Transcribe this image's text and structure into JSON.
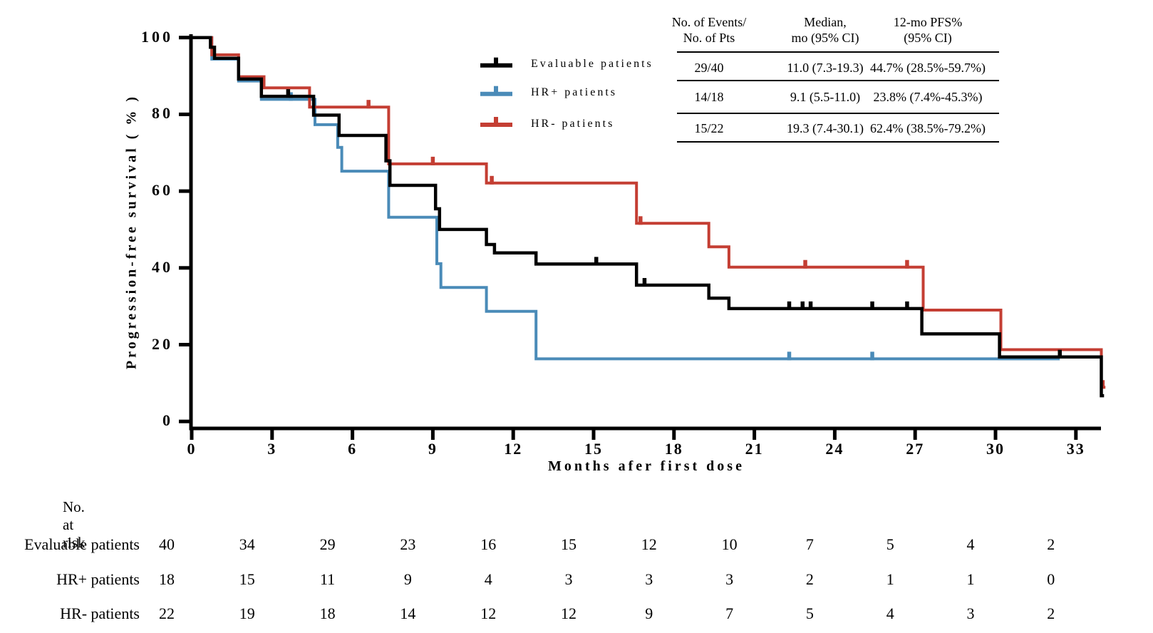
{
  "y_axis": {
    "label": "Progression-free survival ( % )",
    "ticks": [
      0,
      20,
      40,
      60,
      80,
      100
    ]
  },
  "x_axis": {
    "label": "Months afer first dose",
    "ticks": [
      0,
      3,
      6,
      9,
      12,
      15,
      18,
      21,
      24,
      27,
      30,
      33
    ]
  },
  "legend": {
    "items": [
      {
        "label": "Evaluable patients",
        "color": "#000000"
      },
      {
        "label": "HR+ patients",
        "color": "#4A8BB8"
      },
      {
        "label": "HR- patients",
        "color": "#C43E33"
      }
    ]
  },
  "stats_table": {
    "headers": [
      {
        "line1": "No. of Events/",
        "line2": "No. of Pts"
      },
      {
        "line1": "Median,",
        "line2": "mo (95% CI)"
      },
      {
        "line1": "12-mo PFS%",
        "line2": "(95% CI)"
      }
    ],
    "rows": [
      {
        "events": "29/40",
        "median": "11.0 (7.3-19.3)",
        "pfs": "44.7% (28.5%-59.7%)"
      },
      {
        "events": "14/18",
        "median": "9.1 (5.5-11.0)",
        "pfs": "23.8% (7.4%-45.3%)"
      },
      {
        "events": "15/22",
        "median": "19.3 (7.4-30.1)",
        "pfs": "62.4% (38.5%-79.2%)"
      }
    ]
  },
  "risk_table": {
    "title": "No. at risk",
    "rows": [
      {
        "label": "Evaluable patients",
        "counts": [
          40,
          34,
          29,
          23,
          16,
          15,
          12,
          10,
          7,
          5,
          4,
          2
        ]
      },
      {
        "label": "HR+ patients",
        "counts": [
          18,
          15,
          11,
          9,
          4,
          3,
          3,
          3,
          2,
          1,
          1,
          0
        ]
      },
      {
        "label": "HR- patients",
        "counts": [
          22,
          19,
          18,
          14,
          12,
          12,
          9,
          7,
          5,
          4,
          3,
          2
        ]
      }
    ]
  },
  "chart_data": {
    "type": "line",
    "subtype": "kaplan-meier-step",
    "title": "",
    "xlabel": "Months afer first dose",
    "ylabel": "Progression-free survival ( % )",
    "xlim": [
      0,
      34.5
    ],
    "ylim": [
      0,
      100
    ],
    "grid": false,
    "legend_position": "upper-center-left",
    "series": [
      {
        "name": "HR+ patients",
        "color": "#4A8BB8",
        "line_width": 4,
        "points": [
          [
            0,
            100
          ],
          [
            0.75,
            94.4
          ],
          [
            1.75,
            88.7
          ],
          [
            2.6,
            83.9
          ],
          [
            4.6,
            77.3
          ],
          [
            5.45,
            71.4
          ],
          [
            5.6,
            65.2
          ],
          [
            7.35,
            53.2
          ],
          [
            9.15,
            41.1
          ],
          [
            9.3,
            34.9
          ],
          [
            11.0,
            28.7
          ],
          [
            12.85,
            16.3
          ]
        ],
        "censor_months": [
          3.7,
          22.3,
          25.4
        ],
        "end_month": 32.4
      },
      {
        "name": "HR- patients",
        "color": "#C43E33",
        "line_width": 4,
        "points": [
          [
            0,
            100
          ],
          [
            0.75,
            95.5
          ],
          [
            1.75,
            89.8
          ],
          [
            2.7,
            86.9
          ],
          [
            4.4,
            81.9
          ],
          [
            7.35,
            67.1
          ],
          [
            11.0,
            62.1
          ],
          [
            16.6,
            51.6
          ],
          [
            19.3,
            45.5
          ],
          [
            20.05,
            40.2
          ],
          [
            27.3,
            29.0
          ],
          [
            30.2,
            18.7
          ],
          [
            33.95,
            8.9
          ]
        ],
        "censor_months": [
          6.6,
          9.0,
          11.2,
          16.75,
          22.9,
          26.7,
          34.0
        ],
        "end_month": 34.1
      },
      {
        "name": "Evaluable patients",
        "color": "#000000",
        "line_width": 4.5,
        "points": [
          [
            0,
            100
          ],
          [
            0.7,
            97.5
          ],
          [
            0.85,
            94.6
          ],
          [
            1.75,
            89.2
          ],
          [
            2.6,
            84.7
          ],
          [
            4.55,
            79.8
          ],
          [
            5.5,
            74.5
          ],
          [
            7.25,
            67.9
          ],
          [
            7.4,
            61.5
          ],
          [
            9.1,
            55.4
          ],
          [
            9.25,
            50.0
          ],
          [
            11.0,
            46.1
          ],
          [
            11.3,
            43.9
          ],
          [
            12.85,
            41.0
          ],
          [
            16.6,
            35.5
          ],
          [
            19.3,
            32.1
          ],
          [
            20.05,
            29.4
          ],
          [
            27.25,
            22.8
          ],
          [
            30.15,
            16.8
          ],
          [
            33.95,
            6.7
          ]
        ],
        "censor_months": [
          3.6,
          15.1,
          16.9,
          22.3,
          22.8,
          23.1,
          25.4,
          26.7,
          32.4
        ],
        "end_month": 34.05
      }
    ]
  }
}
